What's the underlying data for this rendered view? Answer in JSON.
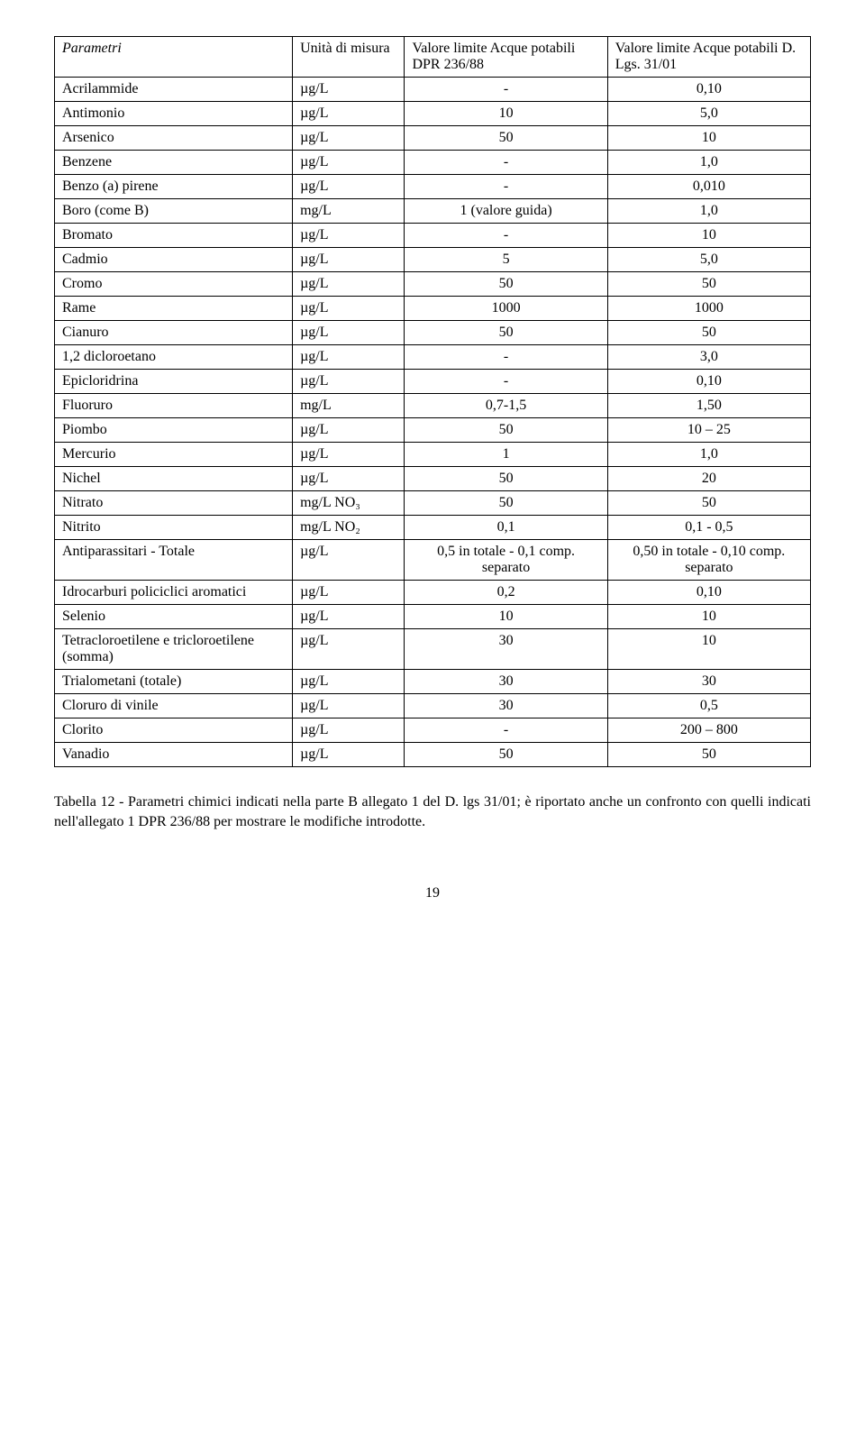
{
  "header": {
    "c0": "Parametri",
    "c1": "Unità di misura",
    "c2": "Valore limite Acque potabili DPR 236/88",
    "c3": "Valore limite Acque potabili D. Lgs. 31/01"
  },
  "rows": [
    {
      "c0": "Acrilammide",
      "c1": "µg/L",
      "c2": "-",
      "c3": "0,10"
    },
    {
      "c0": "Antimonio",
      "c1": "µg/L",
      "c2": "10",
      "c3": "5,0"
    },
    {
      "c0": "Arsenico",
      "c1": "µg/L",
      "c2": "50",
      "c3": "10"
    },
    {
      "c0": "Benzene",
      "c1": "µg/L",
      "c2": "-",
      "c3": "1,0"
    },
    {
      "c0": "Benzo (a) pirene",
      "c1": "µg/L",
      "c2": "-",
      "c3": "0,010"
    },
    {
      "c0": "Boro (come B)",
      "c1": "mg/L",
      "c2": "1 (valore guida)",
      "c3": "1,0"
    },
    {
      "c0": "Bromato",
      "c1": "µg/L",
      "c2": "-",
      "c3": "10"
    },
    {
      "c0": "Cadmio",
      "c1": "µg/L",
      "c2": "5",
      "c3": "5,0"
    },
    {
      "c0": "Cromo",
      "c1": "µg/L",
      "c2": "50",
      "c3": "50"
    },
    {
      "c0": "Rame",
      "c1": "µg/L",
      "c2": "1000",
      "c3": "1000"
    },
    {
      "c0": "Cianuro",
      "c1": "µg/L",
      "c2": "50",
      "c3": "50"
    },
    {
      "c0": "1,2 dicloroetano",
      "c1": "µg/L",
      "c2": "-",
      "c3": "3,0"
    },
    {
      "c0": "Epicloridrina",
      "c1": "µg/L",
      "c2": "-",
      "c3": "0,10"
    },
    {
      "c0": "Fluoruro",
      "c1": "mg/L",
      "c2": "0,7-1,5",
      "c3": "1,50"
    },
    {
      "c0": "Piombo",
      "c1": "µg/L",
      "c2": "50",
      "c3": "10 – 25"
    },
    {
      "c0": "Mercurio",
      "c1": "µg/L",
      "c2": "1",
      "c3": "1,0"
    },
    {
      "c0": "Nichel",
      "c1": "µg/L",
      "c2": "50",
      "c3": "20"
    },
    {
      "c0": "Nitrato",
      "c1": "mg/L NO₃",
      "c2": "50",
      "c3": "50"
    },
    {
      "c0": "Nitrito",
      "c1": "mg/L NO₂",
      "c2": "0,1",
      "c3": "0,1 - 0,5"
    },
    {
      "c0": "Antiparassitari - Totale",
      "c1": "µg/L",
      "c2": "0,5 in totale - 0,1 comp. separato",
      "c3": "0,50 in totale - 0,10 comp. separato"
    },
    {
      "c0": "Idrocarburi policiclici aromatici",
      "c1": "µg/L",
      "c2": "0,2",
      "c3": "0,10"
    },
    {
      "c0": "Selenio",
      "c1": "µg/L",
      "c2": "10",
      "c3": "10"
    },
    {
      "c0": "Tetracloroetilene e tricloroetilene (somma)",
      "c1": "µg/L",
      "c2": "30",
      "c3": "10"
    },
    {
      "c0": "Trialometani (totale)",
      "c1": "µg/L",
      "c2": "30",
      "c3": "30"
    },
    {
      "c0": "Cloruro di vinile",
      "c1": "µg/L",
      "c2": "30",
      "c3": "0,5"
    },
    {
      "c0": "Clorito",
      "c1": "µg/L",
      "c2": "-",
      "c3": "200 – 800"
    },
    {
      "c0": "Vanadio",
      "c1": "µg/L",
      "c2": "50",
      "c3": "50"
    }
  ],
  "caption": "Tabella 12 - Parametri chimici indicati nella parte B allegato 1 del D. lgs 31/01; è riportato anche un confronto con quelli indicati nell'allegato 1 DPR 236/88 per mostrare le modifiche introdotte.",
  "page_number": "19"
}
